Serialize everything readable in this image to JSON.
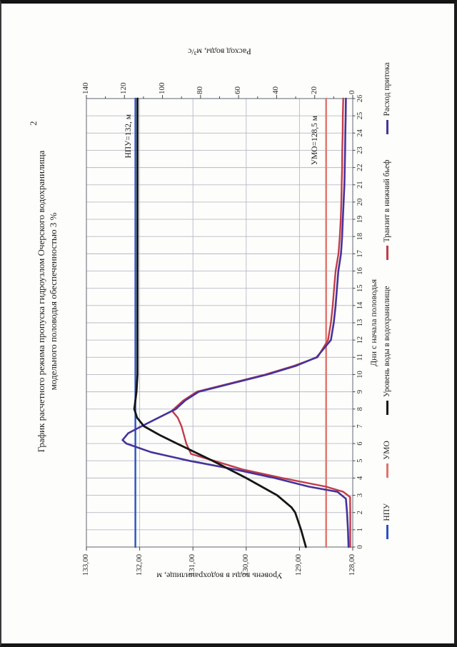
{
  "page_number": "2",
  "title": {
    "line1": "График расчетного режима пропуска гидроузлом Очерского водохранилища",
    "line2": "модельного половодья обеспеченностью 3 %"
  },
  "chart_data": {
    "type": "line",
    "x_axis": {
      "title": "Дни с начала половодья",
      "min": 0,
      "max": 26,
      "tick_step": 1
    },
    "y_left_axis": {
      "title": "Уровень воды в водохранилище, м",
      "min": 128,
      "max": 133,
      "tick_step": 1,
      "tick_labels": [
        "133,00",
        "132,00",
        "131,00",
        "130,00",
        "129,00",
        "128,00"
      ]
    },
    "y_right_axis": {
      "title": "Расход воды, м³/с",
      "min": 0,
      "max": 140,
      "tick_step": 20,
      "tick_labels": [
        "140",
        "120",
        "100",
        "80",
        "60",
        "40",
        "20",
        "0"
      ]
    },
    "grid": {
      "x_step": 1,
      "y_left_step": 1
    },
    "annotations": [
      {
        "id": "npu",
        "text": "НПУ=132, м"
      },
      {
        "id": "umo",
        "text": "УМО=128,5 м"
      }
    ],
    "series": [
      {
        "name": "УМО",
        "axis": "level",
        "color": "#e0736c",
        "width": 2.4,
        "points": [
          [
            0,
            128.5
          ],
          [
            26,
            128.5
          ]
        ]
      },
      {
        "name": "НПУ",
        "axis": "level",
        "color": "#2b52c0",
        "width": 2.4,
        "points": [
          [
            0,
            132.08
          ],
          [
            26,
            132.08
          ]
        ]
      },
      {
        "name": "Транзит в нижний бьеф",
        "axis": "flow",
        "color": "#c23b4b",
        "width": 2.4,
        "points": [
          [
            0,
            1.3
          ],
          [
            1,
            1.3
          ],
          [
            2,
            1.3
          ],
          [
            2.9,
            1.4
          ],
          [
            3.2,
            5
          ],
          [
            3.5,
            14
          ],
          [
            4,
            37
          ],
          [
            4.5,
            58
          ],
          [
            5,
            73
          ],
          [
            5.4,
            85
          ],
          [
            6,
            87.5
          ],
          [
            7,
            90
          ],
          [
            7.5,
            92
          ],
          [
            7.9,
            95
          ],
          [
            8.5,
            89
          ],
          [
            9,
            82
          ],
          [
            9.5,
            64
          ],
          [
            10,
            46
          ],
          [
            10.5,
            31
          ],
          [
            11,
            18.5
          ],
          [
            12,
            13
          ],
          [
            13,
            11.5
          ],
          [
            14,
            10.5
          ],
          [
            15,
            9.8
          ],
          [
            16,
            9
          ],
          [
            17,
            7.5
          ],
          [
            18,
            6.8
          ],
          [
            19,
            6.3
          ],
          [
            20,
            6
          ],
          [
            21,
            5.8
          ],
          [
            22,
            5.6
          ],
          [
            23,
            5.5
          ],
          [
            24,
            5.3
          ],
          [
            25,
            5.2
          ],
          [
            26,
            5
          ]
        ]
      },
      {
        "name": "Расход притока",
        "axis": "flow",
        "color": "#46339b",
        "width": 2.6,
        "points": [
          [
            0,
            2.2
          ],
          [
            1,
            2.5
          ],
          [
            2,
            3
          ],
          [
            2.8,
            3.6
          ],
          [
            3.2,
            8
          ],
          [
            3.5,
            23
          ],
          [
            4,
            41
          ],
          [
            4.5,
            62
          ],
          [
            5,
            86
          ],
          [
            5.5,
            106
          ],
          [
            6,
            119
          ],
          [
            6.2,
            121
          ],
          [
            6.6,
            118
          ],
          [
            7,
            111
          ],
          [
            7.5,
            102
          ],
          [
            8,
            93
          ],
          [
            8.5,
            88
          ],
          [
            9,
            81
          ],
          [
            9.5,
            63
          ],
          [
            10,
            45
          ],
          [
            10.5,
            30
          ],
          [
            11,
            19
          ],
          [
            12,
            11.5
          ],
          [
            13,
            10
          ],
          [
            14,
            9
          ],
          [
            15,
            8.3
          ],
          [
            16,
            7.6
          ],
          [
            17,
            6.2
          ],
          [
            18,
            5.6
          ],
          [
            19,
            5.2
          ],
          [
            20,
            4.8
          ],
          [
            21,
            4.4
          ],
          [
            22,
            4.2
          ],
          [
            23,
            4
          ],
          [
            24,
            3.9
          ],
          [
            25,
            3.7
          ],
          [
            26,
            3.6
          ]
        ]
      },
      {
        "name": "Уровень воды в водохранилище",
        "axis": "level",
        "color": "#161616",
        "width": 2.8,
        "points": [
          [
            0,
            128.88
          ],
          [
            1,
            128.97
          ],
          [
            2,
            129.08
          ],
          [
            2.3,
            129.15
          ],
          [
            3,
            129.42
          ],
          [
            4,
            130
          ],
          [
            5,
            130.63
          ],
          [
            6,
            131.3
          ],
          [
            6.5,
            131.63
          ],
          [
            7,
            131.92
          ],
          [
            7.5,
            132.05
          ],
          [
            8,
            132.1
          ],
          [
            9,
            132.06
          ],
          [
            10,
            132.04
          ],
          [
            26,
            132.04
          ]
        ]
      }
    ],
    "legend": [
      {
        "label": "НПУ",
        "color": "#2b52c0"
      },
      {
        "label": "УМО",
        "color": "#e0736c"
      },
      {
        "label": "Уровень воды в водохранилище",
        "color": "#161616"
      },
      {
        "label": "Транзит в нижний бьеф",
        "color": "#c23b4b"
      },
      {
        "label": "Расход притока",
        "color": "#46339b"
      }
    ]
  }
}
